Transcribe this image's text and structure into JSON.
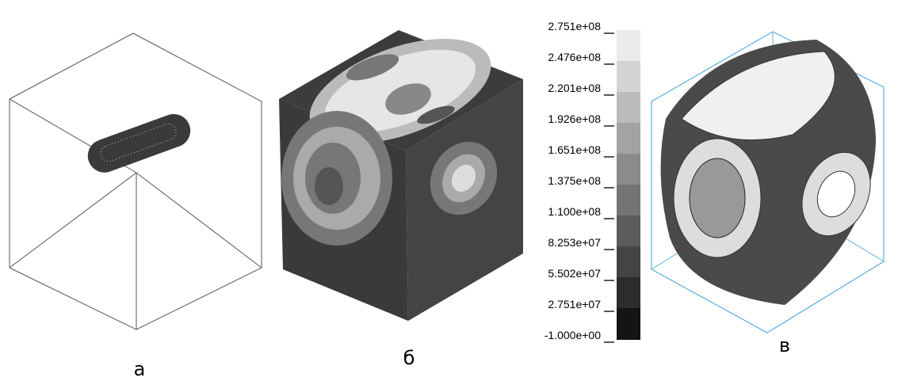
{
  "panels": [
    {
      "label": "а"
    },
    {
      "label": "б"
    },
    {
      "label": "в"
    }
  ],
  "colorbar": {
    "labels": [
      "2.751e+08",
      "2.476e+08",
      "2.201e+08",
      "1.926e+08",
      "1.651e+08",
      "1.375e+08",
      "1.100e+08",
      "8.253e+07",
      "5.502e+07",
      "2.751e+07",
      "-1.000e+00"
    ]
  }
}
